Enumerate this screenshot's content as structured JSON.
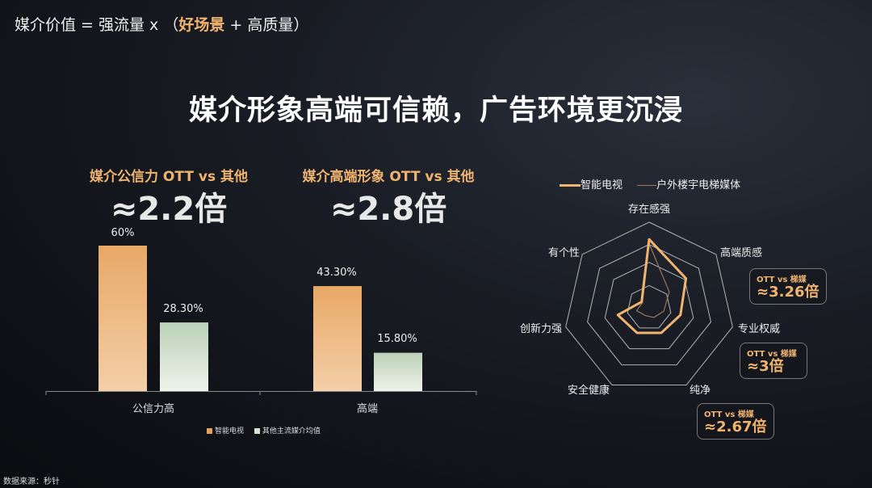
{
  "formula": {
    "prefix": "媒介价值 = 强流量 x （",
    "highlight": "好场景",
    "suffix": " + 高质量）"
  },
  "title": "媒介形象高端可信赖，广告环境更沉浸",
  "kpis": [
    {
      "label": "媒介公信力 OTT vs 其他",
      "value": "≈2.2倍"
    },
    {
      "label": "媒介高端形象 OTT vs 其他",
      "value": "≈2.8倍"
    }
  ],
  "colors": {
    "tv": "#e8b07a",
    "other": "#d6e4d2",
    "radar_tv": "#f0b46e",
    "radar_elevator": "#9a7a55",
    "grid": "#cfcfcf"
  },
  "chart_data": [
    {
      "type": "bar",
      "categories": [
        "公信力高",
        "高端"
      ],
      "series": [
        {
          "name": "智能电视",
          "values": [
            60,
            43.3
          ],
          "labels": [
            "60%",
            "43.30%"
          ]
        },
        {
          "name": "其他主流媒介均值",
          "values": [
            28.3,
            15.8
          ],
          "labels": [
            "28.30%",
            "15.80%"
          ]
        }
      ],
      "ylim": [
        0,
        70
      ],
      "legend": "bottom"
    },
    {
      "type": "radar",
      "axes": [
        "存在感强",
        "高端质感",
        "专业权威",
        "纯净",
        "安全健康",
        "创新力强",
        "有个性"
      ],
      "series": [
        {
          "name": "智能电视",
          "values": [
            3.2,
            2.2,
            1.5,
            1.3,
            1.3,
            1.5,
            0.45
          ]
        },
        {
          "name": "户外楼宇电梯媒体",
          "values": [
            3.0,
            1.2,
            0.7,
            0.5,
            0.4,
            0.6,
            0.4
          ]
        }
      ],
      "rlim": [
        0,
        4
      ],
      "legend": "top"
    }
  ],
  "callouts": [
    {
      "small": "OTT vs 梯媒",
      "big": "≈3.26倍"
    },
    {
      "small": "OTT vs 梯媒",
      "big": "≈3倍"
    },
    {
      "small": "OTT vs 梯媒",
      "big": "≈2.67倍"
    }
  ],
  "source": "数据来源：秒针"
}
